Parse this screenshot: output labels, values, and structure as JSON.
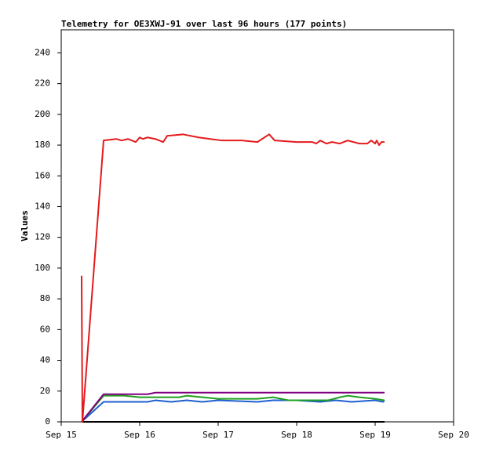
{
  "chart_data": {
    "type": "line",
    "title": "Telemetry for OE3XWJ-91 over last 96 hours (177 points)",
    "y_label": "Values",
    "xlim": [
      15,
      20
    ],
    "xticks": [
      {
        "value": 15,
        "label": "Sep 15"
      },
      {
        "value": 16,
        "label": "Sep 16"
      },
      {
        "value": 17,
        "label": "Sep 17"
      },
      {
        "value": 18,
        "label": "Sep 18"
      },
      {
        "value": 19,
        "label": "Sep 19"
      },
      {
        "value": 20,
        "label": "Sep 20"
      }
    ],
    "ylim": [
      0,
      255
    ],
    "yticks": [
      0,
      20,
      40,
      60,
      80,
      100,
      120,
      140,
      160,
      180,
      200,
      220,
      240
    ],
    "grid": false,
    "series": [
      {
        "color": "#e41a1c",
        "x": [
          15.26,
          15.27,
          15.54,
          15.7,
          15.77,
          15.85,
          15.95,
          16.0,
          16.04,
          16.1,
          16.2,
          16.3,
          16.35,
          16.55,
          16.75,
          16.9,
          17.05,
          17.3,
          17.5,
          17.65,
          17.72,
          18.0,
          18.2,
          18.25,
          18.3,
          18.38,
          18.45,
          18.55,
          18.65,
          18.8,
          18.9,
          18.95,
          19.0,
          19.02,
          19.05,
          19.08,
          19.12
        ],
        "values": [
          95,
          0,
          183,
          184,
          183,
          184,
          182,
          185,
          184,
          185,
          184,
          182,
          186,
          187,
          185,
          184,
          183,
          183,
          182,
          187,
          183,
          182,
          182,
          181,
          183,
          181,
          182,
          181,
          183,
          181,
          181,
          183,
          181,
          183,
          180,
          182,
          182
        ]
      },
      {
        "color": "#800080",
        "x": [
          15.26,
          15.54,
          16.1,
          16.2,
          19.12
        ],
        "values": [
          0,
          18,
          18,
          19,
          19
        ]
      },
      {
        "color": "#1fa01f",
        "x": [
          15.26,
          15.54,
          15.8,
          16.0,
          16.5,
          16.6,
          16.8,
          17.0,
          17.5,
          17.7,
          17.9,
          18.4,
          18.55,
          18.65,
          18.8,
          19.0,
          19.12
        ],
        "values": [
          0,
          17,
          17,
          16,
          16,
          17,
          16,
          15,
          15,
          16,
          14,
          14,
          16,
          17,
          16,
          15,
          14
        ]
      },
      {
        "color": "#1f5fd0",
        "x": [
          15.26,
          15.54,
          16.1,
          16.2,
          16.4,
          16.6,
          16.8,
          17.0,
          17.5,
          17.7,
          18.0,
          18.3,
          18.5,
          18.7,
          19.0,
          19.1,
          19.12
        ],
        "values": [
          0,
          13,
          13,
          14,
          13,
          14,
          13,
          14,
          13,
          14,
          14,
          13,
          14,
          13,
          14,
          13,
          14
        ]
      },
      {
        "color": "#000000",
        "x": [
          15.26,
          19.12
        ],
        "values": [
          0,
          0
        ]
      }
    ]
  }
}
